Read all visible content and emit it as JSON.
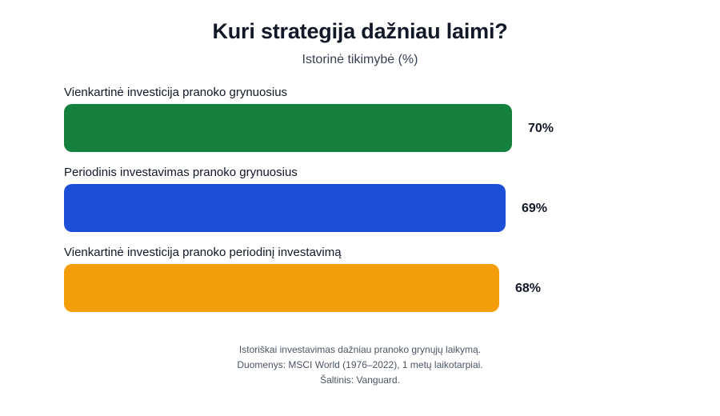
{
  "header": {
    "title": "Kuri strategija dažniau laimi?",
    "subtitle": "Istorinė tikimybė (%)"
  },
  "bars": [
    {
      "label": "Vienkartinė investicija pranoko grynuosius",
      "value": 70,
      "value_label": "70%",
      "color": "#15803d"
    },
    {
      "label": "Periodinis investavimas pranoko grynuosius",
      "value": 69,
      "value_label": "69%",
      "color": "#1d4ed8"
    },
    {
      "label": "Vienkartinė investicija pranoko periodinį investavimą",
      "value": 68,
      "value_label": "68%",
      "color": "#f59e0b"
    }
  ],
  "footer": {
    "line1": "Istoriškai investavimas dažniau pranoko grynųjų laikymą.",
    "line2": "Duomenys: MSCI World (1976–2022), 1 metų laikotarpiai.",
    "line3": "Šaltinis: Vanguard."
  },
  "chart_data": {
    "type": "bar",
    "orientation": "horizontal",
    "title": "Kuri strategija dažniau laimi?",
    "subtitle": "Istorinė tikimybė (%)",
    "categories": [
      "Vienkartinė investicija pranoko grynuosius",
      "Periodinis investavimas pranoko grynuosius",
      "Vienkartinė investicija pranoko periodinį investavimą"
    ],
    "values": [
      70,
      69,
      68
    ],
    "value_labels": [
      "70%",
      "69%",
      "68%"
    ],
    "colors": [
      "#15803d",
      "#1d4ed8",
      "#f59e0b"
    ],
    "xlabel": "",
    "ylabel": "",
    "xlim": [
      0,
      100
    ],
    "grid": false,
    "legend": "none",
    "annotations": [
      "Istoriškai investavimas dažniau pranoko grynųjų laikymą.",
      "Duomenys: MSCI World (1976–2022), 1 metų laikotarpiai.",
      "Šaltinis: Vanguard."
    ]
  }
}
